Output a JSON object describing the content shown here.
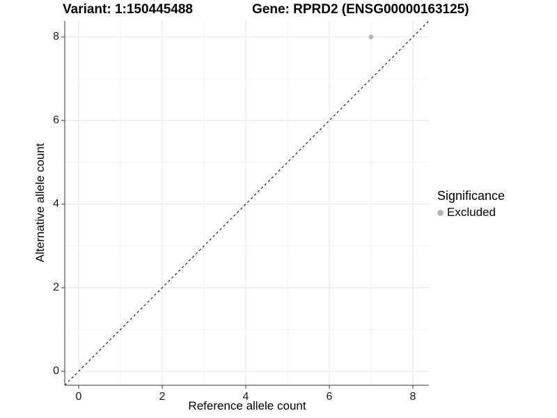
{
  "titles": {
    "variant": "Variant: 1:150445488",
    "gene": "Gene: RPRD2 (ENSG00000163125)"
  },
  "legend": {
    "title": "Significance",
    "position": "right",
    "items": [
      {
        "label": "Excluded",
        "color": "#b5b5b5"
      }
    ]
  },
  "chart_data": {
    "type": "scatter",
    "title_left": "Variant: 1:150445488",
    "title_right": "Gene: RPRD2 (ENSG00000163125)",
    "xlabel": "Reference allele count",
    "ylabel": "Alternative allele count",
    "xlim": [
      -0.3333,
      8.3833
    ],
    "ylim": [
      -0.3333,
      8.3833
    ],
    "x_ticks": [
      0,
      2,
      4,
      6,
      8
    ],
    "y_ticks": [
      0,
      2,
      4,
      6,
      8
    ],
    "x_minor_ticks": [
      1,
      3,
      5,
      7
    ],
    "y_minor_ticks": [
      1,
      3,
      5,
      7
    ],
    "grid": true,
    "equal_aspect": true,
    "reference_line": {
      "kind": "identity",
      "intercept": 0,
      "slope": 1,
      "style": "dashed",
      "color": "#000000"
    },
    "series": [
      {
        "name": "Excluded",
        "color": "#b5b5b5",
        "points": [
          {
            "x": 7,
            "y": 8
          }
        ]
      }
    ],
    "legend_title": "Significance",
    "legend_position": "right",
    "colors": {
      "grid_major": "#e4e4e4",
      "grid_minor": "#f1f1f1",
      "axis_line": "#333333",
      "tick_label": "#1a1a1a"
    }
  }
}
